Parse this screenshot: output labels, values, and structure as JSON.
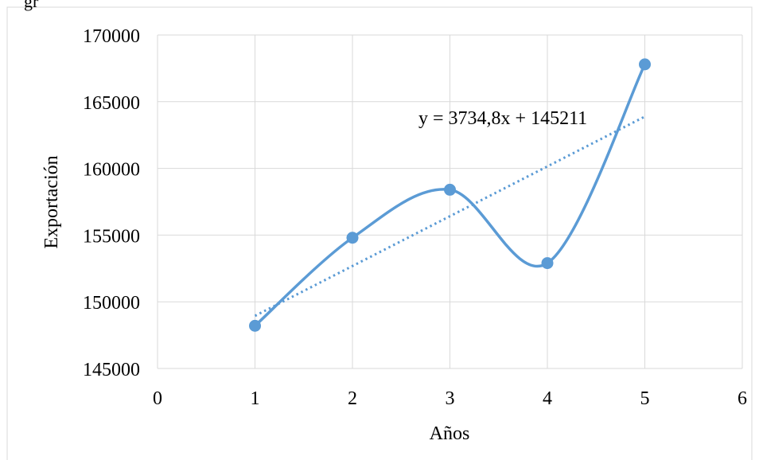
{
  "page": {
    "caption_fragment": "gr"
  },
  "chart_data": {
    "type": "scatter",
    "title": "",
    "xlabel": "Años",
    "ylabel": "Exportación",
    "xlim": [
      0,
      6
    ],
    "ylim": [
      145000,
      170000
    ],
    "x_ticks": [
      0,
      1,
      2,
      3,
      4,
      5,
      6
    ],
    "y_ticks": [
      145000,
      150000,
      155000,
      160000,
      165000,
      170000
    ],
    "grid": true,
    "legend": "none",
    "series": [
      {
        "x": [
          1,
          2,
          3,
          4,
          5
        ],
        "values": [
          148200,
          154800,
          158400,
          152900,
          167800
        ],
        "line": "smooth",
        "markers": true,
        "color": "#5b9bd5"
      }
    ],
    "trendline": {
      "type": "linear",
      "slope": 3734.8,
      "intercept": 145211,
      "x_range": [
        1,
        5
      ],
      "style": "dotted",
      "color": "#5b9bd5",
      "equation_label": "y = 3734,8x + 145211"
    }
  }
}
